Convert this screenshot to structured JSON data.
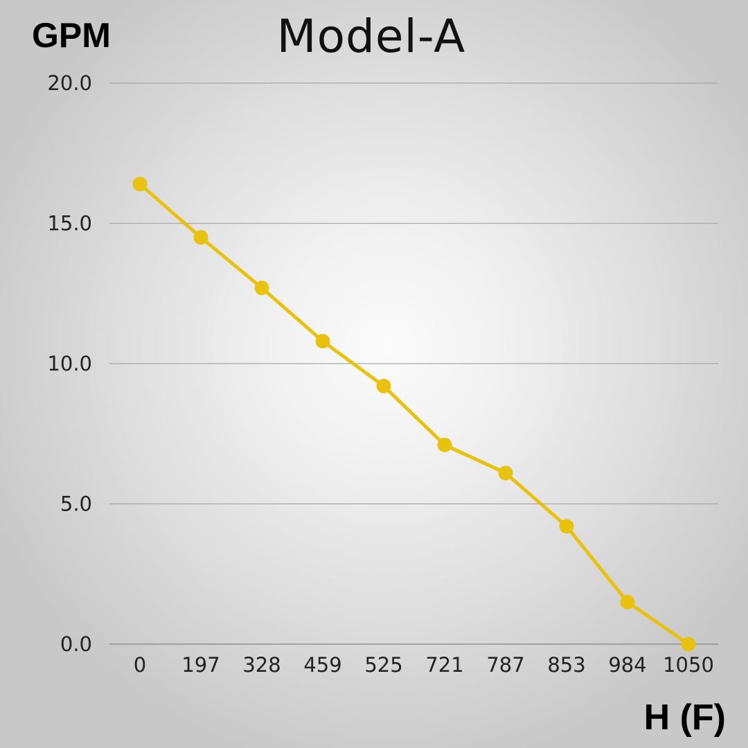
{
  "chart_data": {
    "type": "line",
    "title": "Model-A",
    "ylabel": "GPM",
    "xlabel": "H (F)",
    "categories": [
      "0",
      "197",
      "328",
      "459",
      "525",
      "721",
      "787",
      "853",
      "984",
      "1050"
    ],
    "series": [
      {
        "values": [
          16.4,
          14.5,
          12.7,
          10.8,
          9.2,
          7.1,
          6.1,
          4.2,
          1.5,
          0.0
        ],
        "color": "#e8c20e"
      }
    ],
    "yticks": [
      "0.0",
      "5.0",
      "10.0",
      "15.0",
      "20.0"
    ],
    "ylim": [
      0,
      20
    ],
    "grid": true,
    "legend": "none"
  }
}
